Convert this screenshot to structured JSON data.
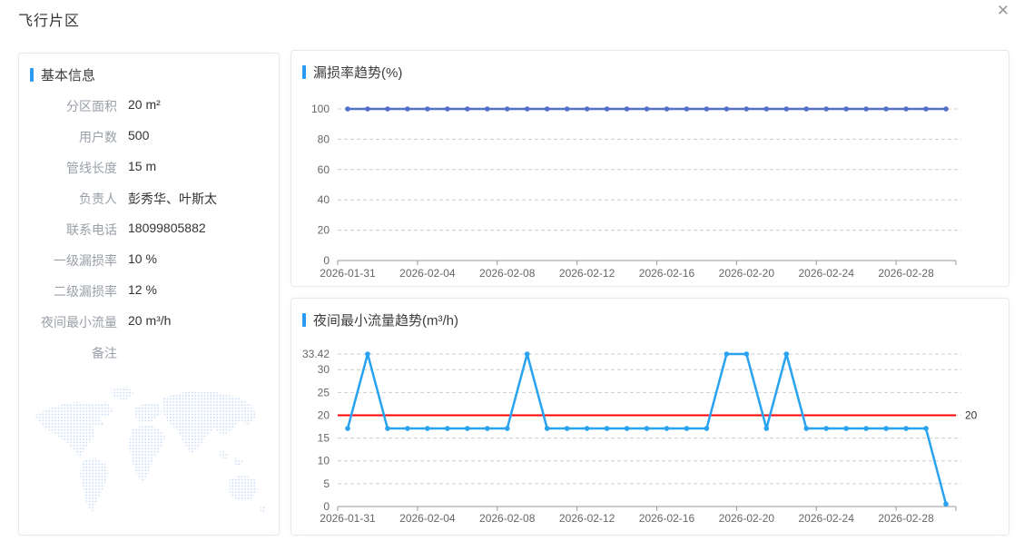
{
  "page": {
    "title": "飞行片区",
    "close_icon": "✕"
  },
  "info_panel": {
    "title": "基本信息",
    "fields": [
      {
        "label": "分区面积",
        "value": "20 m²"
      },
      {
        "label": "用户数",
        "value": "500"
      },
      {
        "label": "管线长度",
        "value": "15 m"
      },
      {
        "label": "负责人",
        "value": "彭秀华、叶斯太"
      },
      {
        "label": "联系电话",
        "value": "18099805882"
      },
      {
        "label": "一级漏损率",
        "value": "10 %"
      },
      {
        "label": "二级漏损率",
        "value": "12 %"
      },
      {
        "label": "夜间最小流量",
        "value": "20 m³/h"
      },
      {
        "label": "备注",
        "value": ""
      }
    ]
  },
  "colors": {
    "accent_blue": "#2b9bf2",
    "leakage_line": "#5470c6",
    "flow_line": "#29a3f0",
    "markline_red": "#ff0000",
    "grid_line": "#cccccc",
    "axis_line": "#999999",
    "axis_label": "#666666"
  },
  "chart_data": [
    {
      "type": "line",
      "title": "漏损率趋势(%)",
      "categories": [
        "2026-01-31",
        "2026-02-01",
        "2026-02-02",
        "2026-02-03",
        "2026-02-04",
        "2026-02-05",
        "2026-02-06",
        "2026-02-07",
        "2026-02-08",
        "2026-02-09",
        "2026-02-10",
        "2026-02-11",
        "2026-02-12",
        "2026-02-13",
        "2026-02-14",
        "2026-02-15",
        "2026-02-16",
        "2026-02-17",
        "2026-02-18",
        "2026-02-19",
        "2026-02-20",
        "2026-02-21",
        "2026-02-22",
        "2026-02-23",
        "2026-02-24",
        "2026-02-25",
        "2026-02-26",
        "2026-02-27",
        "2026-02-28",
        "2026-03-01",
        "2026-03-02"
      ],
      "values": [
        100,
        100,
        100,
        100,
        100,
        100,
        100,
        100,
        100,
        100,
        100,
        100,
        100,
        100,
        100,
        100,
        100,
        100,
        100,
        100,
        100,
        100,
        100,
        100,
        100,
        100,
        100,
        100,
        100,
        100,
        100
      ],
      "ylim": [
        0,
        100
      ],
      "yticks": [
        0,
        20,
        40,
        60,
        80,
        100
      ],
      "x_tick_every": 4,
      "x_tick_labels": [
        "2026-01-31",
        "2026-02-04",
        "2026-02-08",
        "2026-02-12",
        "2026-02-16",
        "2026-02-20",
        "2026-02-24",
        "2026-02-28"
      ],
      "grid": "dashed",
      "legend": "none",
      "line_color": "#5470c6"
    },
    {
      "type": "line",
      "title": "夜间最小流量趋势(m³/h)",
      "categories": [
        "2026-01-31",
        "2026-02-01",
        "2026-02-02",
        "2026-02-03",
        "2026-02-04",
        "2026-02-05",
        "2026-02-06",
        "2026-02-07",
        "2026-02-08",
        "2026-02-09",
        "2026-02-10",
        "2026-02-11",
        "2026-02-12",
        "2026-02-13",
        "2026-02-14",
        "2026-02-15",
        "2026-02-16",
        "2026-02-17",
        "2026-02-18",
        "2026-02-19",
        "2026-02-20",
        "2026-02-21",
        "2026-02-22",
        "2026-02-23",
        "2026-02-24",
        "2026-02-25",
        "2026-02-26",
        "2026-02-27",
        "2026-02-28",
        "2026-03-01",
        "2026-03-02"
      ],
      "values": [
        17.1,
        33.42,
        17.1,
        17.1,
        17.1,
        17.1,
        17.1,
        17.1,
        17.1,
        33.42,
        17.1,
        17.1,
        17.1,
        17.1,
        17.1,
        17.1,
        17.1,
        17.1,
        17.1,
        33.42,
        33.42,
        17.1,
        33.42,
        17.1,
        17.1,
        17.1,
        17.1,
        17.1,
        17.1,
        17.1,
        0.55
      ],
      "ylim": [
        0,
        33.42
      ],
      "yticks": [
        0,
        5,
        10,
        15,
        20,
        25,
        30,
        33.42
      ],
      "x_tick_every": 4,
      "x_tick_labels": [
        "2026-01-31",
        "2026-02-04",
        "2026-02-08",
        "2026-02-12",
        "2026-02-16",
        "2026-02-20",
        "2026-02-24",
        "2026-02-28"
      ],
      "grid": "dashed",
      "legend": "none",
      "line_color": "#29a3f0",
      "markline": {
        "value": 20,
        "label": "20",
        "color": "#ff0000"
      }
    }
  ]
}
